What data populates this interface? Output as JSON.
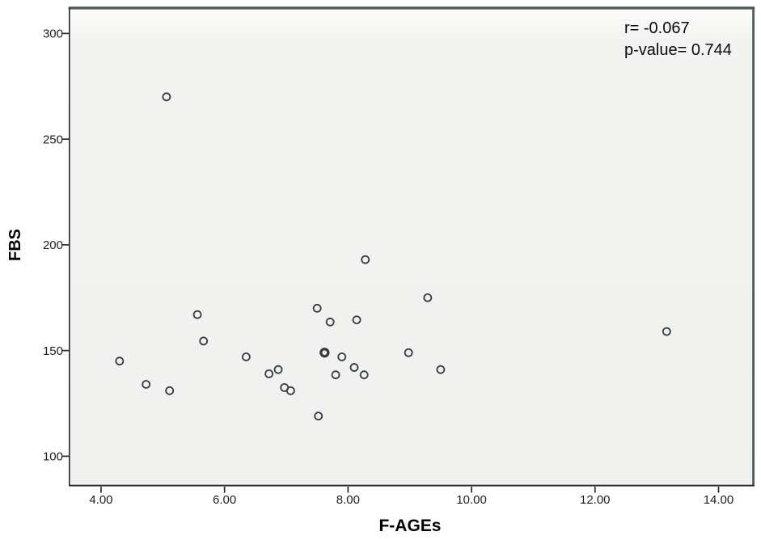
{
  "chart_data": {
    "type": "scatter",
    "title": "",
    "xlabel": "F-AGEs",
    "ylabel": "FBS",
    "xlim": [
      3.49,
      14.57
    ],
    "ylim": [
      86,
      312
    ],
    "grid": false,
    "legend": null,
    "annotations": [
      "r= -0.067",
      "p-value= 0.744"
    ],
    "x_ticks": {
      "values": [
        4,
        6,
        8,
        10,
        12,
        14
      ],
      "labels": [
        "4.00",
        "6.00",
        "8.00",
        "10.00",
        "12.00",
        "14.00"
      ]
    },
    "y_ticks": {
      "values": [
        100,
        150,
        200,
        250,
        300
      ],
      "labels": [
        "100",
        "150",
        "200",
        "250",
        "300"
      ]
    },
    "colors": {
      "marker_stroke": "#333d42",
      "frame_top_right": "#4e5b62",
      "frame_left_bottom": "#22282c",
      "plot_bg": "#f2f2f0",
      "plot_bg_top": "#fbfbfa",
      "tick_stroke": "#2a2a2a",
      "text": "#1a1a1a",
      "page_bg": "#ffffff"
    },
    "marker": {
      "shape": "open-circle",
      "radius": 4.5,
      "stroke_width": 1.8,
      "overlap_stroke_width": 3.3
    },
    "points": [
      {
        "x": 4.3,
        "y": 145
      },
      {
        "x": 4.73,
        "y": 134
      },
      {
        "x": 5.06,
        "y": 270
      },
      {
        "x": 5.11,
        "y": 131
      },
      {
        "x": 5.56,
        "y": 167
      },
      {
        "x": 5.66,
        "y": 154.5
      },
      {
        "x": 6.35,
        "y": 147
      },
      {
        "x": 6.72,
        "y": 139
      },
      {
        "x": 6.87,
        "y": 141
      },
      {
        "x": 6.97,
        "y": 132.5
      },
      {
        "x": 7.07,
        "y": 131
      },
      {
        "x": 7.5,
        "y": 170
      },
      {
        "x": 7.52,
        "y": 119
      },
      {
        "x": 7.62,
        "y": 149,
        "overlap": 2
      },
      {
        "x": 7.71,
        "y": 163.5
      },
      {
        "x": 7.8,
        "y": 138.5
      },
      {
        "x": 7.9,
        "y": 147
      },
      {
        "x": 8.1,
        "y": 142
      },
      {
        "x": 8.14,
        "y": 164.5
      },
      {
        "x": 8.26,
        "y": 138.5
      },
      {
        "x": 8.28,
        "y": 193
      },
      {
        "x": 8.98,
        "y": 149
      },
      {
        "x": 9.29,
        "y": 175
      },
      {
        "x": 9.5,
        "y": 141
      },
      {
        "x": 13.16,
        "y": 159
      }
    ]
  }
}
